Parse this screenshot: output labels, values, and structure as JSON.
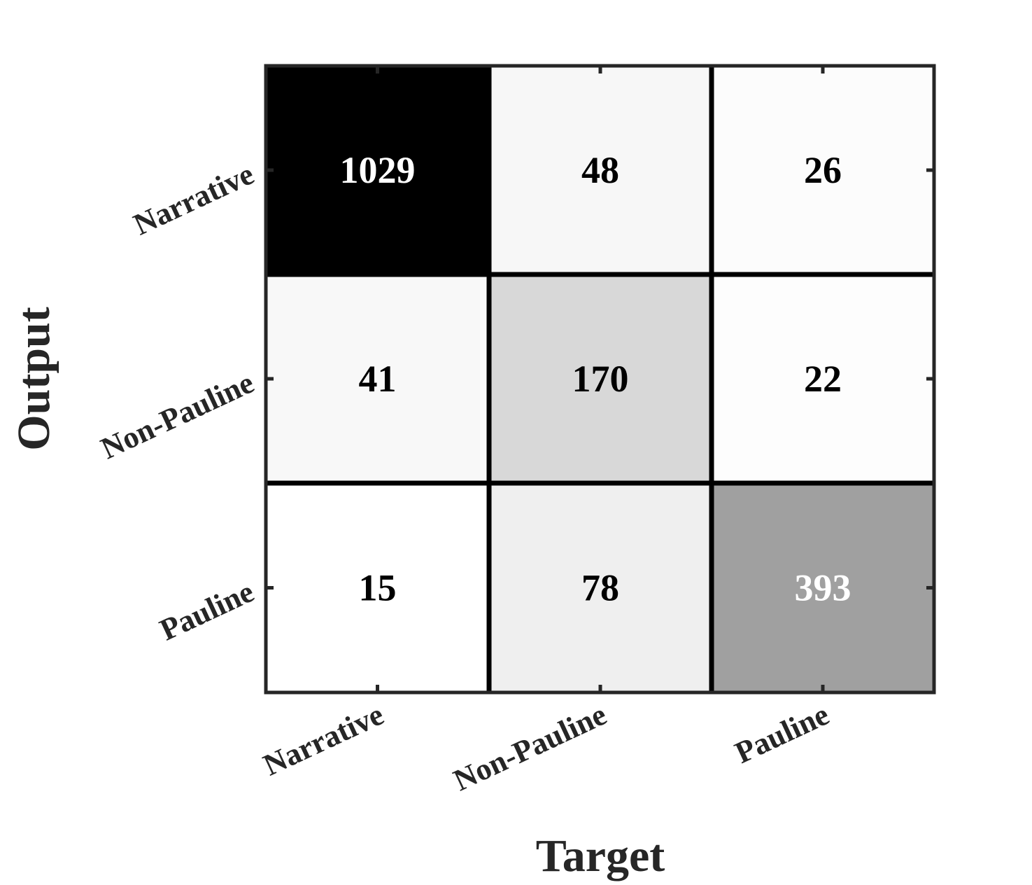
{
  "chart_data": {
    "type": "heatmap",
    "title": "",
    "xlabel": "Target",
    "ylabel": "Output",
    "x_categories": [
      "Narrative",
      "Non-Pauline",
      "Pauline"
    ],
    "y_categories": [
      "Narrative",
      "Non-Pauline",
      "Pauline"
    ],
    "values": [
      [
        1029,
        48,
        26
      ],
      [
        41,
        170,
        22
      ],
      [
        15,
        78,
        393
      ]
    ],
    "colormap": "gray (white = low, black = high)",
    "grid": true,
    "colors": {
      "high": "#000000",
      "low": "#ffffff",
      "text_dark": "#000000",
      "text_light": "#ffffff",
      "axes": "#262626"
    }
  }
}
